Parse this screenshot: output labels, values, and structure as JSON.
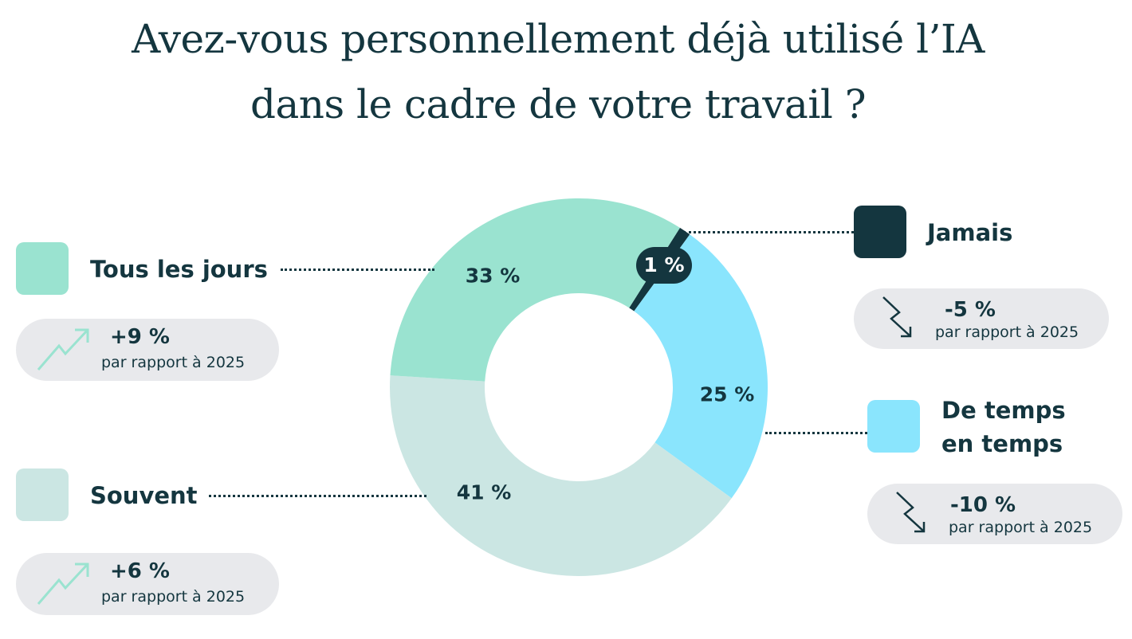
{
  "chart_data": {
    "type": "pie",
    "donut": true,
    "title": [
      "Avez-vous personnellement déjà utilisé l’IA",
      "dans le cadre de votre travail ?"
    ],
    "slices": [
      {
        "label": "Jamais",
        "value": 1,
        "value_label": "1 %",
        "color": "#14363f",
        "change": "-5 %",
        "change_note": "par rapport à 2025",
        "trend": "down"
      },
      {
        "label": "De temps en temps",
        "label_lines": [
          "De temps",
          "en temps"
        ],
        "value": 25,
        "value_label": "25 %",
        "color": "#8ae5fd",
        "change": "-10 %",
        "change_note": "par rapport à 2025",
        "trend": "down"
      },
      {
        "label": "Souvent",
        "value": 41,
        "value_label": "41 %",
        "color": "#cbe6e3",
        "change": "+6 %",
        "change_note": "par rapport à 2025",
        "trend": "up"
      },
      {
        "label": "Tous les jours",
        "value": 33,
        "value_label": "33 %",
        "color": "#9ae3d0",
        "change": "+9 %",
        "change_note": "par rapport à 2025",
        "trend": "up"
      }
    ],
    "colors": {
      "text": "#14363f",
      "pill": "#e8e9ec",
      "trend_up": "#9ae3d0",
      "trend_down": "#14363f"
    }
  }
}
